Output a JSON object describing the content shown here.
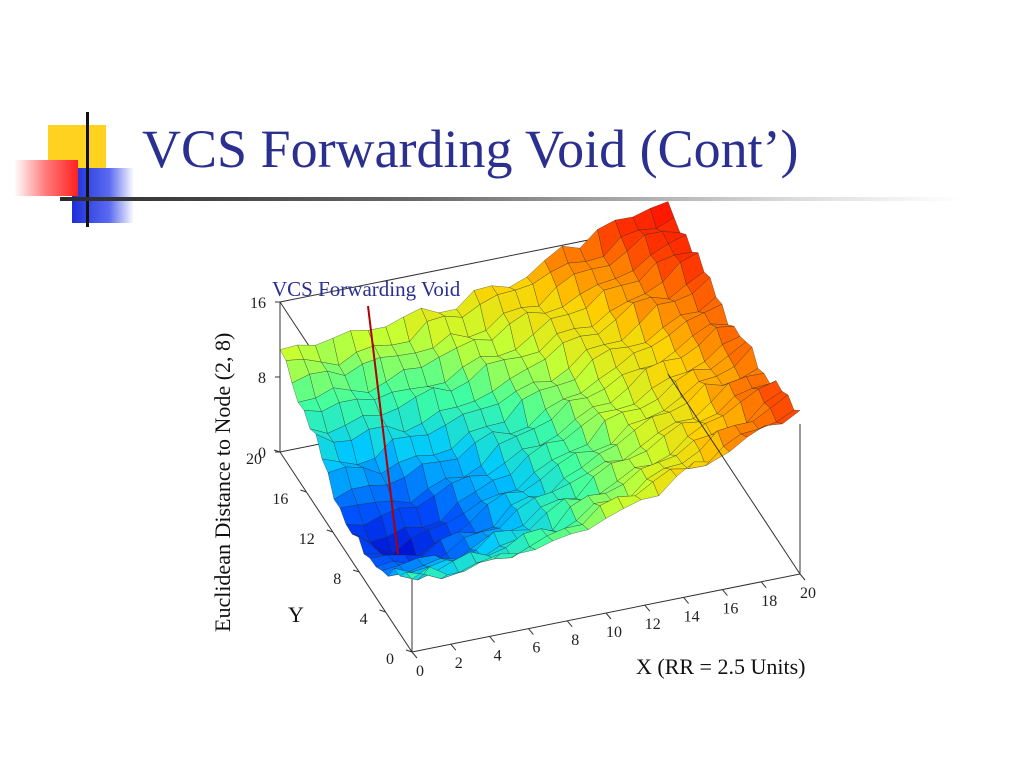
{
  "slide": {
    "title": "VCS Forwarding Void (Cont’)"
  },
  "chart_data": {
    "type": "surface3d",
    "annotation": "VCS Forwarding Void",
    "xlabel": "X (RR = 2.5 Units)",
    "ylabel": "Y",
    "zlabel": "Euclidean Distance to Node (2, 8)",
    "x_ticks": [
      "0",
      "2",
      "4",
      "6",
      "8",
      "10",
      "12",
      "14",
      "16",
      "18",
      "20"
    ],
    "y_ticks": [
      "0",
      "4",
      "8",
      "12",
      "16",
      "20"
    ],
    "z_ticks": [
      "0",
      "8",
      "16"
    ],
    "xlim": [
      0,
      20
    ],
    "ylim": [
      0,
      20
    ],
    "zlim": [
      0,
      16
    ],
    "void_point": {
      "x": 2,
      "y": 8
    },
    "colormap": [
      "#0000c8",
      "#0050ff",
      "#00c8ff",
      "#40ffa0",
      "#c8ff30",
      "#ffd000",
      "#ff6000",
      "#ff0000"
    ],
    "colors": {
      "title": "#2b2f8f",
      "annotation": "#2b2f8f",
      "void_line": "#b00000",
      "axes": "#333333"
    }
  }
}
